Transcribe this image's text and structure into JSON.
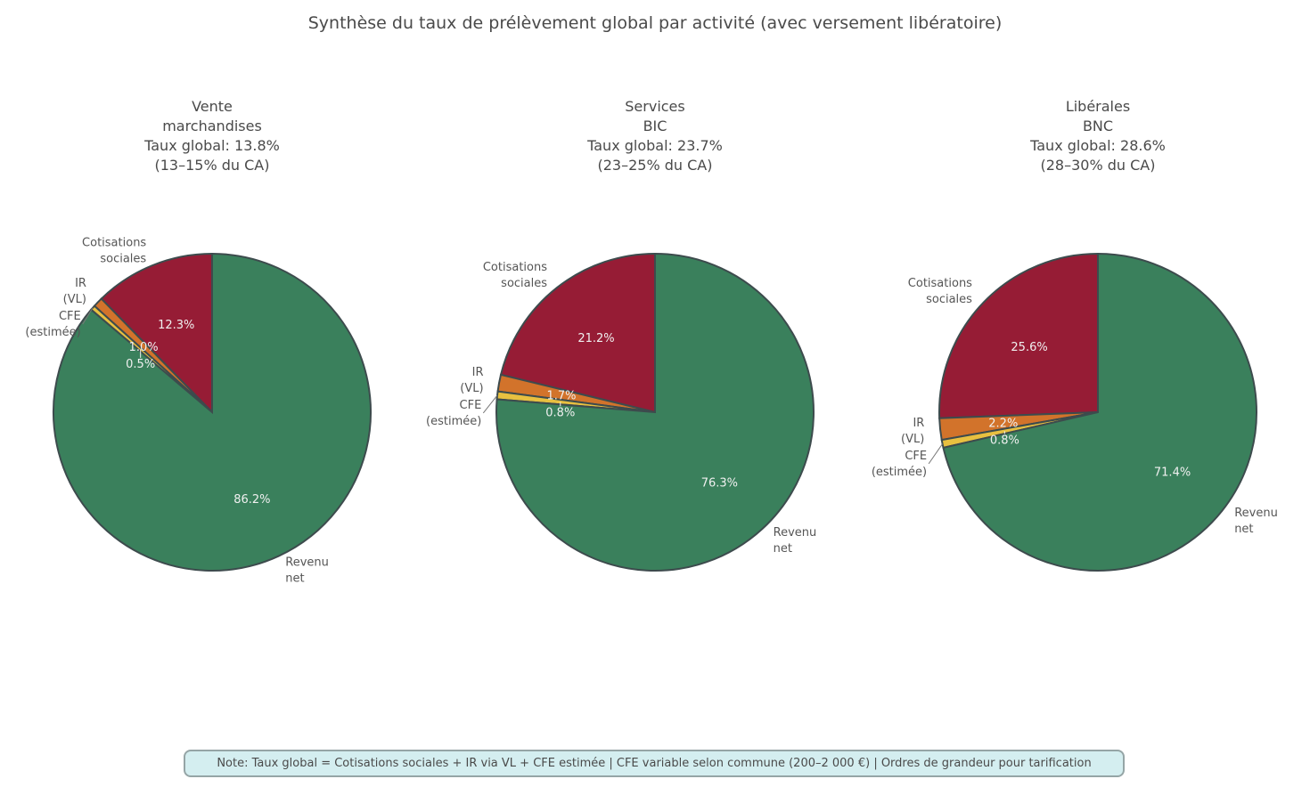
{
  "title": "Synthèse du taux de prélèvement global par activité (avec versement libératoire)",
  "chart_data": [
    {
      "type": "pie",
      "title_lines": [
        "Vente",
        "marchandises",
        "",
        "Taux global: 13.8%",
        "(13–15% du CA)"
      ],
      "categories": [
        [
          "Cotisations",
          "sociales"
        ],
        [
          "IR",
          "(VL)"
        ],
        [
          "CFE",
          "(estimée)"
        ],
        [
          "Revenu",
          "net"
        ]
      ],
      "values": [
        12.3,
        1.0,
        0.5,
        86.2
      ],
      "value_labels": [
        "12.3%",
        "1.0%",
        "0.5%",
        "86.2%"
      ]
    },
    {
      "type": "pie",
      "title_lines": [
        "Services",
        "BIC",
        "",
        "Taux global: 23.7%",
        "(23–25% du CA)"
      ],
      "categories": [
        [
          "Cotisations",
          "sociales"
        ],
        [
          "IR",
          "(VL)"
        ],
        [
          "CFE",
          "(estimée)"
        ],
        [
          "Revenu",
          "net"
        ]
      ],
      "values": [
        21.2,
        1.7,
        0.8,
        76.3
      ],
      "value_labels": [
        "21.2%",
        "1.7%",
        "0.8%",
        "76.3%"
      ]
    },
    {
      "type": "pie",
      "title_lines": [
        "Libérales",
        "BNC",
        "",
        "Taux global: 28.6%",
        "(28–30% du CA)"
      ],
      "categories": [
        [
          "Cotisations",
          "sociales"
        ],
        [
          "IR",
          "(VL)"
        ],
        [
          "CFE",
          "(estimée)"
        ],
        [
          "Revenu",
          "net"
        ]
      ],
      "values": [
        25.6,
        2.2,
        0.8,
        71.4
      ],
      "value_labels": [
        "25.6%",
        "2.2%",
        "0.8%",
        "71.4%"
      ]
    }
  ],
  "colors": [
    "#961c35",
    "#d2732b",
    "#e8c040",
    "#3a805c"
  ],
  "edge_color": "#3d4b4d",
  "start_angle_deg": 90,
  "direction": "counterclockwise",
  "note": "Note: Taux global = Cotisations sociales + IR via VL + CFE estimée  |  CFE variable selon commune (200–2 000 €)  |  Ordres de grandeur pour tarification"
}
